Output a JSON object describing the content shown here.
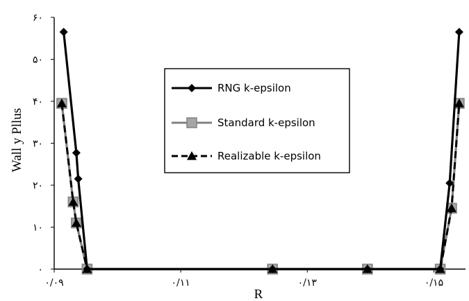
{
  "chart_data": {
    "type": "line",
    "xlabel": "R",
    "ylabel": "Wall y Pllus",
    "xlim": [
      0.09,
      0.155
    ],
    "ylim": [
      0,
      60
    ],
    "x_ticks": [
      {
        "value": 0.09,
        "label": "۰/۰۹"
      },
      {
        "value": 0.11,
        "label": "۰/۱۱"
      },
      {
        "value": 0.13,
        "label": "۰/۱۳"
      },
      {
        "value": 0.15,
        "label": "۰/۱۵"
      }
    ],
    "y_ticks": [
      {
        "value": 0,
        "label": "۰"
      },
      {
        "value": 10,
        "label": "۱۰"
      },
      {
        "value": 20,
        "label": "۲۰"
      },
      {
        "value": 30,
        "label": "۳۰"
      },
      {
        "value": 40,
        "label": "۴۰"
      },
      {
        "value": 50,
        "label": "۵۰"
      },
      {
        "value": 60,
        "label": "۶۰"
      }
    ],
    "grid": false,
    "legend_position": "center-top",
    "series": [
      {
        "name": "RNG k-epsilon",
        "color": "#000000",
        "style": "solid",
        "marker": "diamond",
        "x": [
          0.0915,
          0.0935,
          0.0938,
          0.0952,
          0.1245,
          0.1395,
          0.151,
          0.1525,
          0.154
        ],
        "y": [
          56.5,
          27.7,
          21.5,
          0,
          0,
          0,
          0,
          20.5,
          56.5
        ]
      },
      {
        "name": "Standard k-epsilon",
        "color": "#808080",
        "style": "solid",
        "marker": "square",
        "x": [
          0.0912,
          0.093,
          0.0935,
          0.0952,
          0.1245,
          0.1395,
          0.151,
          0.1528,
          0.154
        ],
        "y": [
          39.5,
          16.0,
          11.0,
          0,
          0,
          0,
          0,
          14.5,
          39.5
        ]
      },
      {
        "name": "Realizable k-epsilon",
        "color": "#000000",
        "style": "dashed",
        "marker": "triangle",
        "x": [
          0.0912,
          0.093,
          0.0935,
          0.0952,
          0.1245,
          0.1395,
          0.151,
          0.1528,
          0.154
        ],
        "y": [
          39.5,
          16.0,
          11.0,
          0,
          0,
          0,
          0,
          14.5,
          39.5
        ]
      }
    ]
  }
}
